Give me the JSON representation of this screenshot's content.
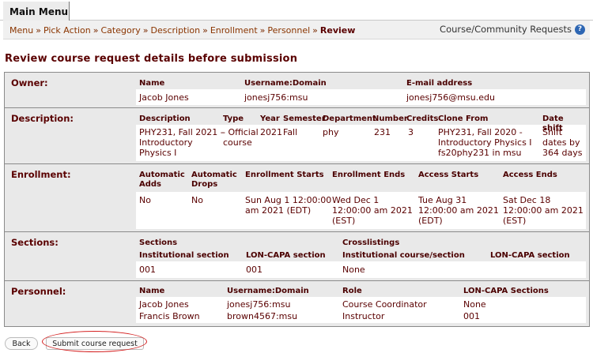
{
  "menu": {
    "main_menu": "Main Menu"
  },
  "breadcrumb": {
    "items": [
      "Menu",
      "Pick Action",
      "Category",
      "Description",
      "Enrollment",
      "Personnel"
    ],
    "current": "Review",
    "separator": "»"
  },
  "header_right": {
    "label": "Course/Community Requests",
    "help_icon": "help-icon"
  },
  "page_title": "Review course request details before submission",
  "owner": {
    "label": "Owner:",
    "headers": [
      "Name",
      "Username:Domain",
      "E-mail address"
    ],
    "values": [
      "Jacob Jones",
      "jonesj756:msu",
      "jonesj756@msu.edu"
    ]
  },
  "description": {
    "label": "Description:",
    "headers": [
      "Description",
      "Type",
      "Year",
      "Semester",
      "Department",
      "Number",
      "Credits",
      "Clone From",
      "Date shift"
    ],
    "values": {
      "description": [
        "PHY231, Fall 2021 -",
        "Introductory",
        "Physics I"
      ],
      "type": [
        "Official",
        "course"
      ],
      "year": "2021",
      "semester": "Fall",
      "department": "phy",
      "number": "231",
      "credits": "3",
      "clone_from": [
        "PHY231, Fall 2020 -",
        "Introductory Physics I",
        "fs20phy231 in msu"
      ],
      "date_shift": [
        "Shift",
        "dates by",
        "364 days"
      ]
    }
  },
  "enrollment": {
    "label": "Enrollment:",
    "headers": [
      [
        "Automatic",
        "Adds"
      ],
      [
        "Automatic",
        "Drops"
      ],
      [
        "Enrollment Starts"
      ],
      [
        "Enrollment Ends"
      ],
      [
        "Access Starts"
      ],
      [
        "Access Ends"
      ]
    ],
    "values": {
      "auto_adds": "No",
      "auto_drops": "No",
      "enroll_starts": [
        "Sun Aug 1 12:00:00",
        "am 2021 (EDT)"
      ],
      "enroll_ends": [
        "Wed Dec 1",
        "12:00:00 am 2021",
        "(EST)"
      ],
      "access_starts": [
        "Tue Aug 31",
        "12:00:00 am 2021",
        "(EDT)"
      ],
      "access_ends": [
        "Sat Dec 18",
        "12:00:00 am 2021",
        "(EST)"
      ]
    }
  },
  "sections": {
    "label": "Sections:",
    "group_headers": [
      "Sections",
      "Crosslistings"
    ],
    "sub_headers": [
      "Institutional section",
      "LON-CAPA section",
      "Institutional course/section",
      "LON-CAPA section"
    ],
    "values": [
      "001",
      "001",
      "None",
      ""
    ]
  },
  "personnel": {
    "label": "Personnel:",
    "headers": [
      "Name",
      "Username:Domain",
      "Role",
      "LON-CAPA Sections"
    ],
    "rows": [
      [
        "Jacob Jones",
        "jonesj756:msu",
        "Course Coordinator",
        "None"
      ],
      [
        "Francis Brown",
        "brown4567:msu",
        "Instructor",
        "001"
      ]
    ]
  },
  "buttons": {
    "back": "Back",
    "submit": "Submit course request"
  }
}
